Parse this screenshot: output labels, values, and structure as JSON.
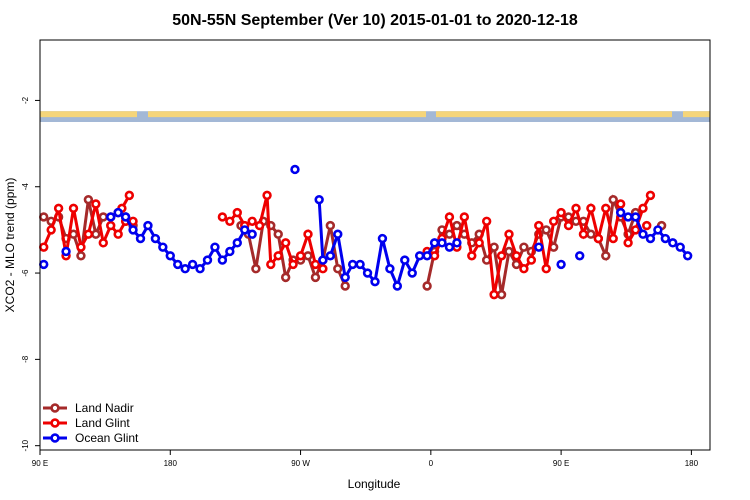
{
  "chart_data": {
    "type": "line",
    "title": "50N-55N September (Ver 10)   2015-01-01 to 2020-12-18",
    "xlabel": "Longitude",
    "ylabel": "XCO2 - MLO trend (ppm)",
    "xlim": [
      -90,
      270
    ],
    "ylim": [
      -10.1,
      -0.6
    ],
    "xticks": [
      {
        "value": -90,
        "label": "90 E"
      },
      {
        "value": -20,
        "label": "180"
      },
      {
        "value": 50,
        "label": "90 W"
      },
      {
        "value": 120,
        "label": "0"
      },
      {
        "value": 190,
        "label": "90 E"
      },
      {
        "value": 260,
        "label": "180"
      }
    ],
    "yticks": [
      {
        "value": -2,
        "label": "-2"
      },
      {
        "value": -4,
        "label": "-4"
      },
      {
        "value": -6,
        "label": "-6"
      },
      {
        "value": -8,
        "label": "-8"
      },
      {
        "value": -10,
        "label": "-10"
      }
    ],
    "land_strip": {
      "y_top": -2.25,
      "y_bottom": -2.5,
      "ocean_color": "#a3b8d6",
      "land_color": "#f5d57a"
    },
    "legend_position": "bottom-left",
    "series": [
      {
        "name": "Land Nadir",
        "color": "#a52a2a",
        "segments": [
          [
            [
              -88,
              -4.7
            ],
            [
              -84,
              -4.8
            ],
            [
              -80,
              -4.7
            ],
            [
              -76,
              -5.2
            ],
            [
              -72,
              -5.1
            ],
            [
              -68,
              -5.6
            ],
            [
              -64,
              -4.3
            ],
            [
              -60,
              -5.1
            ],
            [
              -56,
              -4.7
            ],
            [
              -52,
              -4.7
            ],
            [
              -48,
              -4.6
            ],
            [
              -44,
              -4.7
            ]
          ],
          [
            [
              -40,
              -4.9
            ]
          ],
          [
            [
              18,
              -4.9
            ],
            [
              22,
              -5.1
            ],
            [
              26,
              -5.9
            ],
            [
              30,
              -4.8
            ],
            [
              34,
              -4.9
            ],
            [
              38,
              -5.1
            ],
            [
              42,
              -6.1
            ],
            [
              46,
              -5.7
            ],
            [
              50,
              -5.7
            ],
            [
              54,
              -5.6
            ],
            [
              58,
              -6.1
            ],
            [
              62,
              -5.7
            ],
            [
              66,
              -4.9
            ],
            [
              70,
              -5.9
            ],
            [
              74,
              -6.3
            ]
          ],
          [
            [
              118,
              -6.3
            ],
            [
              122,
              -5.5
            ],
            [
              126,
              -5.0
            ],
            [
              130,
              -5.1
            ],
            [
              134,
              -4.9
            ],
            [
              138,
              -5.1
            ],
            [
              142,
              -5.3
            ],
            [
              146,
              -5.1
            ],
            [
              150,
              -5.7
            ],
            [
              154,
              -5.4
            ],
            [
              158,
              -6.5
            ],
            [
              162,
              -5.5
            ],
            [
              166,
              -5.8
            ],
            [
              170,
              -5.4
            ],
            [
              174,
              -5.5
            ],
            [
              178,
              -5.1
            ],
            [
              182,
              -5.0
            ],
            [
              186,
              -5.4
            ],
            [
              190,
              -4.7
            ],
            [
              194,
              -4.7
            ],
            [
              198,
              -4.8
            ],
            [
              202,
              -4.8
            ],
            [
              206,
              -5.1
            ],
            [
              210,
              -5.2
            ],
            [
              214,
              -5.6
            ],
            [
              218,
              -4.3
            ],
            [
              222,
              -4.7
            ],
            [
              226,
              -5.1
            ],
            [
              230,
              -4.6
            ]
          ],
          [
            [
              244,
              -4.9
            ]
          ]
        ]
      },
      {
        "name": "Land Glint",
        "color": "#ee0000",
        "segments": [
          [
            [
              -88,
              -5.4
            ],
            [
              -84,
              -5.0
            ],
            [
              -80,
              -4.5
            ],
            [
              -76,
              -5.6
            ],
            [
              -72,
              -4.5
            ],
            [
              -68,
              -5.4
            ],
            [
              -64,
              -5.1
            ],
            [
              -60,
              -4.4
            ],
            [
              -56,
              -5.3
            ],
            [
              -52,
              -4.9
            ],
            [
              -48,
              -5.1
            ],
            [
              -44,
              -4.8
            ],
            [
              -40,
              -4.8
            ]
          ],
          [
            [
              -46,
              -4.5
            ],
            [
              -42,
              -4.2
            ]
          ],
          [
            [
              8,
              -4.7
            ],
            [
              12,
              -4.8
            ],
            [
              16,
              -4.6
            ],
            [
              20,
              -4.9
            ],
            [
              24,
              -4.8
            ],
            [
              28,
              -4.9
            ],
            [
              32,
              -4.2
            ],
            [
              34,
              -5.8
            ],
            [
              38,
              -5.6
            ],
            [
              42,
              -5.3
            ],
            [
              46,
              -5.8
            ],
            [
              50,
              -5.6
            ],
            [
              54,
              -5.1
            ],
            [
              58,
              -5.8
            ],
            [
              62,
              -5.9
            ]
          ],
          [
            [
              118,
              -5.5
            ],
            [
              122,
              -5.6
            ],
            [
              126,
              -5.2
            ],
            [
              130,
              -4.7
            ],
            [
              134,
              -5.4
            ],
            [
              138,
              -4.7
            ],
            [
              142,
              -5.6
            ],
            [
              146,
              -5.3
            ],
            [
              150,
              -4.8
            ],
            [
              154,
              -6.5
            ],
            [
              158,
              -5.6
            ],
            [
              162,
              -5.1
            ],
            [
              166,
              -5.6
            ],
            [
              170,
              -5.9
            ],
            [
              174,
              -5.7
            ],
            [
              178,
              -4.9
            ],
            [
              182,
              -5.9
            ],
            [
              186,
              -4.8
            ],
            [
              190,
              -4.6
            ],
            [
              194,
              -4.9
            ],
            [
              198,
              -4.5
            ],
            [
              202,
              -5.1
            ],
            [
              206,
              -4.5
            ],
            [
              210,
              -5.2
            ],
            [
              214,
              -4.5
            ],
            [
              218,
              -5.2
            ],
            [
              222,
              -4.4
            ],
            [
              226,
              -5.3
            ],
            [
              230,
              -5.0
            ],
            [
              234,
              -4.5
            ],
            [
              238,
              -4.2
            ]
          ],
          [
            [
              236,
              -4.9
            ]
          ]
        ]
      },
      {
        "name": "Ocean Glint",
        "color": "#0000ee",
        "segments": [
          [
            [
              -88,
              -5.8
            ]
          ],
          [
            [
              -76,
              -5.5
            ]
          ],
          [
            [
              -52,
              -4.7
            ],
            [
              -48,
              -4.6
            ],
            [
              -44,
              -4.7
            ],
            [
              -40,
              -5.0
            ],
            [
              -36,
              -5.2
            ],
            [
              -32,
              -4.9
            ],
            [
              -28,
              -5.2
            ],
            [
              -24,
              -5.4
            ],
            [
              -20,
              -5.6
            ],
            [
              -16,
              -5.8
            ],
            [
              -12,
              -5.9
            ],
            [
              -8,
              -5.8
            ],
            [
              -4,
              -5.9
            ],
            [
              0,
              -5.7
            ],
            [
              4,
              -5.4
            ],
            [
              8,
              -5.7
            ],
            [
              12,
              -5.5
            ],
            [
              16,
              -5.3
            ],
            [
              20,
              -5.0
            ],
            [
              24,
              -5.1
            ]
          ],
          [
            [
              47,
              -3.6
            ]
          ],
          [
            [
              60,
              -4.3
            ],
            [
              62,
              -5.7
            ],
            [
              66,
              -5.6
            ],
            [
              70,
              -5.1
            ],
            [
              74,
              -6.1
            ],
            [
              78,
              -5.8
            ],
            [
              82,
              -5.8
            ],
            [
              86,
              -6.0
            ],
            [
              90,
              -6.2
            ],
            [
              94,
              -5.2
            ],
            [
              98,
              -5.9
            ],
            [
              102,
              -6.3
            ],
            [
              106,
              -5.7
            ],
            [
              110,
              -6.0
            ],
            [
              114,
              -5.6
            ],
            [
              118,
              -5.6
            ],
            [
              122,
              -5.3
            ],
            [
              126,
              -5.3
            ],
            [
              130,
              -5.4
            ],
            [
              134,
              -5.3
            ]
          ],
          [
            [
              178,
              -5.4
            ]
          ],
          [
            [
              190,
              -5.8
            ]
          ],
          [
            [
              200,
              -5.6
            ]
          ],
          [
            [
              222,
              -4.6
            ],
            [
              226,
              -4.7
            ],
            [
              230,
              -4.7
            ],
            [
              234,
              -5.1
            ],
            [
              238,
              -5.2
            ],
            [
              242,
              -5.0
            ],
            [
              246,
              -5.2
            ],
            [
              250,
              -5.3
            ],
            [
              254,
              -5.4
            ],
            [
              258,
              -5.6
            ]
          ]
        ]
      }
    ]
  }
}
